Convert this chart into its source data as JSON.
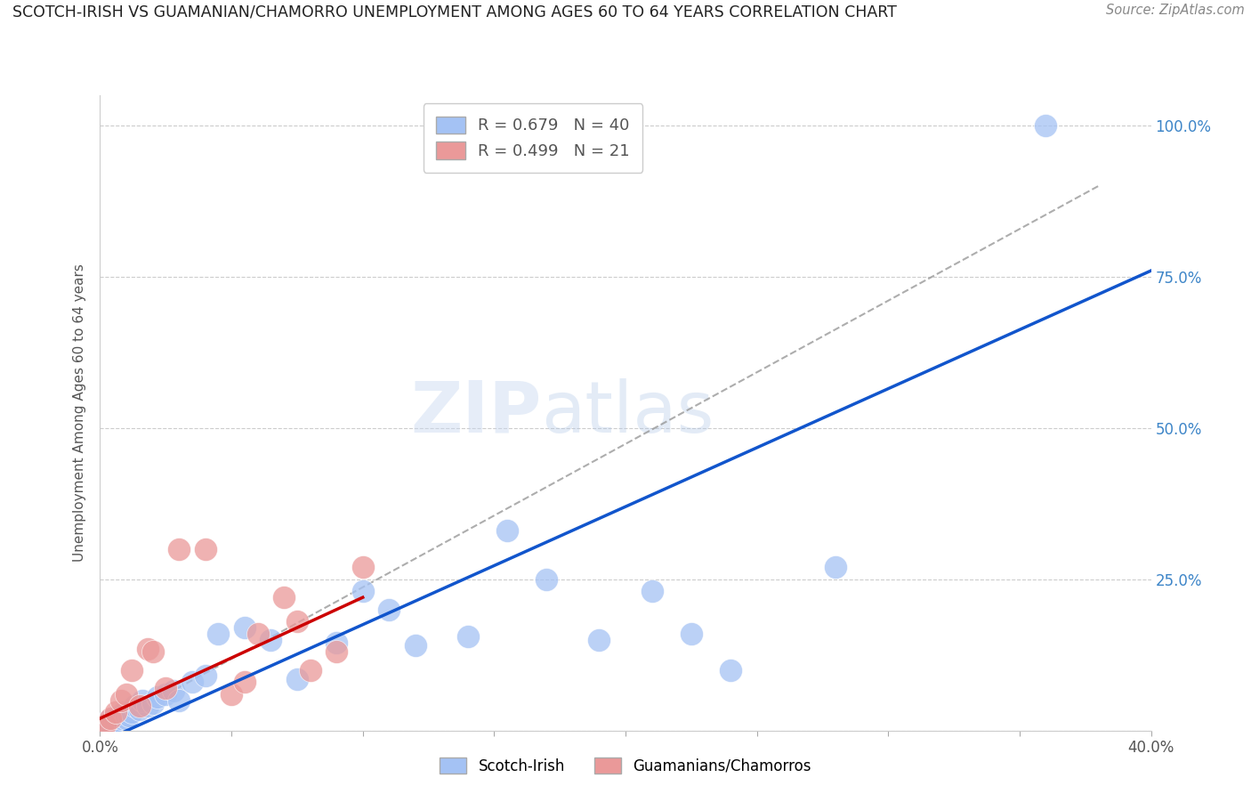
{
  "title": "SCOTCH-IRISH VS GUAMANIAN/CHAMORRO UNEMPLOYMENT AMONG AGES 60 TO 64 YEARS CORRELATION CHART",
  "source": "Source: ZipAtlas.com",
  "ylabel": "Unemployment Among Ages 60 to 64 years",
  "xmin": 0.0,
  "xmax": 0.4,
  "ymin": 0.0,
  "ymax": 1.05,
  "xticks": [
    0.0,
    0.05,
    0.1,
    0.15,
    0.2,
    0.25,
    0.3,
    0.35,
    0.4
  ],
  "ytick_positions": [
    0.0,
    0.25,
    0.5,
    0.75,
    1.0
  ],
  "ytick_labels": [
    "",
    "25.0%",
    "50.0%",
    "75.0%",
    "100.0%"
  ],
  "legend_blue_r": "0.679",
  "legend_blue_n": "40",
  "legend_pink_r": "0.499",
  "legend_pink_n": "21",
  "blue_color": "#a4c2f4",
  "pink_color": "#ea9999",
  "blue_line_color": "#1155cc",
  "pink_line_color": "#cc0000",
  "dashed_line_color": "#999999",
  "watermark_zip": "ZIP",
  "watermark_atlas": "atlas",
  "scotch_irish_x": [
    0.001,
    0.002,
    0.003,
    0.004,
    0.005,
    0.006,
    0.007,
    0.008,
    0.009,
    0.01,
    0.011,
    0.012,
    0.013,
    0.015,
    0.016,
    0.018,
    0.02,
    0.022,
    0.025,
    0.028,
    0.03,
    0.035,
    0.04,
    0.045,
    0.055,
    0.065,
    0.075,
    0.09,
    0.1,
    0.11,
    0.12,
    0.14,
    0.155,
    0.17,
    0.19,
    0.21,
    0.225,
    0.24,
    0.28,
    0.36
  ],
  "scotch_irish_y": [
    0.005,
    0.01,
    0.015,
    0.01,
    0.02,
    0.015,
    0.025,
    0.02,
    0.03,
    0.02,
    0.025,
    0.03,
    0.04,
    0.035,
    0.05,
    0.04,
    0.045,
    0.055,
    0.06,
    0.065,
    0.05,
    0.08,
    0.09,
    0.16,
    0.17,
    0.15,
    0.085,
    0.145,
    0.23,
    0.2,
    0.14,
    0.155,
    0.33,
    0.25,
    0.15,
    0.23,
    0.16,
    0.1,
    0.27,
    1.0
  ],
  "guamanian_x": [
    0.001,
    0.002,
    0.004,
    0.006,
    0.008,
    0.01,
    0.012,
    0.015,
    0.018,
    0.02,
    0.025,
    0.03,
    0.04,
    0.05,
    0.055,
    0.06,
    0.07,
    0.075,
    0.08,
    0.09,
    0.1
  ],
  "guamanian_y": [
    0.005,
    0.01,
    0.02,
    0.03,
    0.05,
    0.06,
    0.1,
    0.04,
    0.135,
    0.13,
    0.07,
    0.3,
    0.3,
    0.06,
    0.08,
    0.16,
    0.22,
    0.18,
    0.1,
    0.13,
    0.27
  ],
  "blue_line_x0": 0.0,
  "blue_line_y0": -0.02,
  "blue_line_x1": 0.4,
  "blue_line_y1": 0.76,
  "pink_line_x0": 0.0,
  "pink_line_y0": 0.02,
  "pink_line_x1": 0.1,
  "pink_line_y1": 0.22,
  "dash_line_x0": 0.0,
  "dash_line_y0": 0.0,
  "dash_line_x1": 0.38,
  "dash_line_y1": 0.9
}
